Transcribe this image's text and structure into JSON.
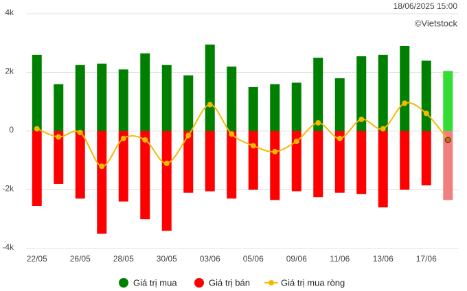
{
  "chart_data": {
    "type": "bar",
    "timestamp": "18/06/2025 15:00",
    "source": "©Vietstock",
    "categories": [
      "22/05",
      null,
      "26/05",
      null,
      "28/05",
      null,
      "30/05",
      null,
      "03/06",
      null,
      "05/06",
      null,
      "09/06",
      null,
      "11/06",
      null,
      "13/06",
      null,
      "17/06",
      null
    ],
    "series": [
      {
        "name": "Giá trị mua",
        "type": "bar",
        "color": "#008000",
        "latest_color": "#33dd33",
        "values": [
          2600,
          1600,
          2250,
          2300,
          2100,
          2650,
          2250,
          1900,
          2950,
          2200,
          1500,
          1600,
          1650,
          2500,
          1800,
          2550,
          2600,
          2900,
          2400,
          2050
        ]
      },
      {
        "name": "Giá trị bán",
        "type": "bar",
        "color": "#ff0000",
        "latest_color": "#f08080",
        "values": [
          -2550,
          -1800,
          -2300,
          -3500,
          -2400,
          -3000,
          -3400,
          -2100,
          -2050,
          -2300,
          -2000,
          -2350,
          -2050,
          -2250,
          -2100,
          -2150,
          -2600,
          -2000,
          -1850,
          -2350
        ]
      },
      {
        "name": "Giá trị mua ròng",
        "type": "line",
        "color": "#f5b800",
        "latest_color": "#c8641e",
        "values": [
          80,
          -200,
          -50,
          -1200,
          -250,
          -300,
          -1100,
          -150,
          900,
          -100,
          -500,
          -700,
          -350,
          280,
          -250,
          400,
          80,
          950,
          600,
          -300
        ]
      }
    ],
    "ylim": [
      -4000,
      4000
    ],
    "yticks": [
      {
        "value": -4000,
        "label": "-4k"
      },
      {
        "value": -2000,
        "label": "-2k"
      },
      0,
      {
        "value": 2000,
        "label": "2k"
      },
      {
        "value": 4000,
        "label": "4k"
      }
    ],
    "grid": true,
    "legend": "bottom"
  }
}
